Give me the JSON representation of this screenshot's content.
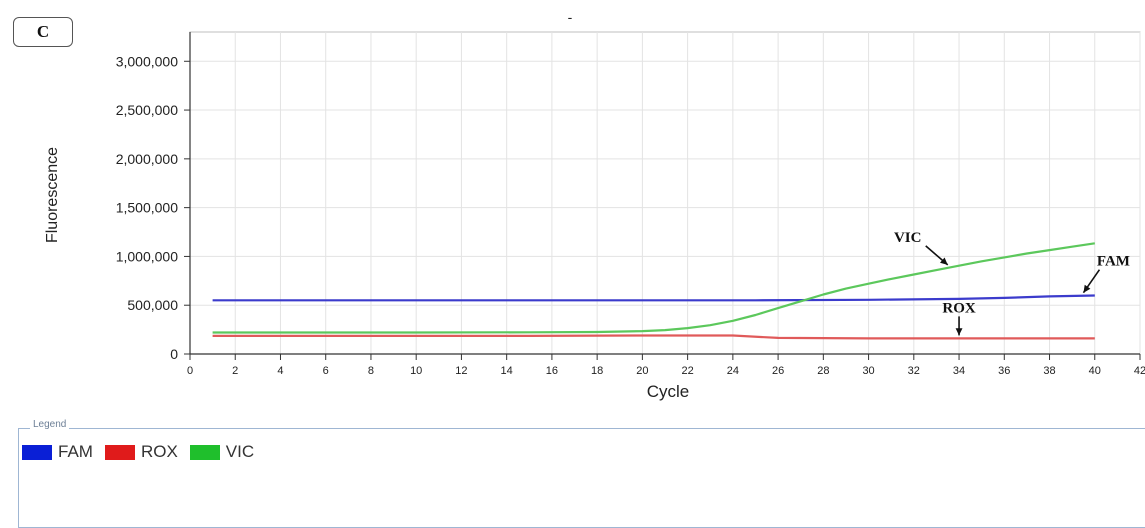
{
  "panel_label": "C",
  "chart_data": {
    "type": "line",
    "title": "-",
    "xlabel": "Cycle",
    "ylabel": "Fluorescence",
    "xlim": [
      0,
      42
    ],
    "ylim": [
      0,
      3300000
    ],
    "x_ticks": [
      0,
      2,
      4,
      6,
      8,
      10,
      12,
      14,
      16,
      18,
      20,
      22,
      24,
      26,
      28,
      30,
      32,
      34,
      36,
      38,
      40,
      42
    ],
    "y_ticks": [
      0,
      500000,
      1000000,
      1500000,
      2000000,
      2500000,
      3000000
    ],
    "y_tick_labels": [
      "0",
      "500,000",
      "1,000,000",
      "1,500,000",
      "2,000,000",
      "2,500,000",
      "3,000,000"
    ],
    "x_tick_labels": [
      "0",
      "2",
      "4",
      "6",
      "8",
      "10",
      "12",
      "14",
      "16",
      "18",
      "20",
      "22",
      "24",
      "26",
      "28",
      "30",
      "32",
      "34",
      "36",
      "38",
      "40",
      "42"
    ],
    "grid": true,
    "series": [
      {
        "name": "FAM",
        "color": "#3b3bcc",
        "x": [
          1,
          5,
          10,
          15,
          20,
          25,
          30,
          34,
          36,
          38,
          40
        ],
        "y": [
          550000,
          550000,
          550000,
          550000,
          550000,
          550000,
          555000,
          565000,
          575000,
          590000,
          600000
        ]
      },
      {
        "name": "ROX",
        "color": "#e05a5a",
        "x": [
          1,
          5,
          10,
          15,
          20,
          24,
          26,
          30,
          35,
          40
        ],
        "y": [
          185000,
          185000,
          185000,
          185000,
          190000,
          190000,
          165000,
          160000,
          160000,
          160000
        ]
      },
      {
        "name": "VIC",
        "color": "#5cc85c",
        "x": [
          1,
          5,
          10,
          15,
          18,
          20,
          21,
          22,
          23,
          24,
          25,
          26,
          27,
          28,
          29,
          30,
          31,
          32,
          33,
          34,
          35,
          36,
          37,
          38,
          39,
          40
        ],
        "y": [
          220000,
          220000,
          220000,
          222000,
          225000,
          235000,
          245000,
          265000,
          295000,
          340000,
          400000,
          470000,
          540000,
          610000,
          670000,
          720000,
          770000,
          815000,
          860000,
          905000,
          950000,
          990000,
          1030000,
          1065000,
          1100000,
          1135000
        ]
      }
    ],
    "annotations": [
      {
        "text": "VIC",
        "series": "VIC",
        "x": 33.5
      },
      {
        "text": "FAM",
        "series": "FAM",
        "x": 39.5
      },
      {
        "text": "ROX",
        "series": "ROX",
        "x": 34
      }
    ],
    "legend": {
      "title": "Legend",
      "position": "bottom",
      "items": [
        {
          "label": "FAM",
          "color": "#0a1fd6"
        },
        {
          "label": "ROX",
          "color": "#e01b1b"
        },
        {
          "label": "VIC",
          "color": "#1fbf2c"
        }
      ]
    }
  }
}
